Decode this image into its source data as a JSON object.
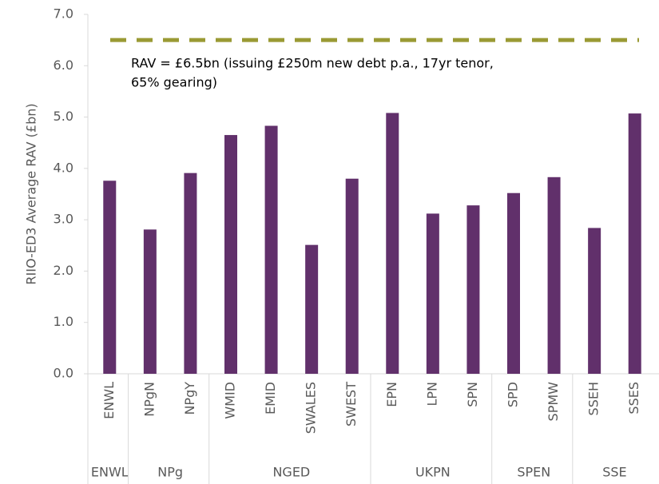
{
  "chart_data": {
    "type": "bar",
    "y_label": "RIIO-ED3 Average RAV (£bn)",
    "groups": [
      {
        "name": "ENWL",
        "categories": [
          "ENWL"
        ],
        "values": [
          3.76
        ]
      },
      {
        "name": "NPg",
        "categories": [
          "NPgN",
          "NPgY"
        ],
        "values": [
          2.81,
          3.91
        ]
      },
      {
        "name": "NGED",
        "categories": [
          "WMID",
          "EMID",
          "SWALES",
          "SWEST"
        ],
        "values": [
          4.65,
          4.83,
          2.51,
          3.8
        ]
      },
      {
        "name": "UKPN",
        "categories": [
          "EPN",
          "LPN",
          "SPN"
        ],
        "values": [
          5.08,
          3.12,
          3.28
        ]
      },
      {
        "name": "SPEN",
        "categories": [
          "SPD",
          "SPMW"
        ],
        "values": [
          3.52,
          3.83
        ]
      },
      {
        "name": "SSE",
        "categories": [
          "SSEH",
          "SSES"
        ],
        "values": [
          2.84,
          5.07
        ]
      }
    ],
    "color": "#61306b",
    "reference_line": {
      "value": 6.5,
      "color": "#9a9a34",
      "annotation": [
        "RAV = £6.5bn (issuing £250m new debt p.a., 17yr tenor,",
        "65% gearing)"
      ]
    },
    "ylim": [
      0,
      7
    ],
    "yticks": [
      {
        "value": 0,
        "label": "0.0"
      },
      {
        "value": 1,
        "label": "1.0"
      },
      {
        "value": 2,
        "label": "2.0"
      },
      {
        "value": 3,
        "label": "3.0"
      },
      {
        "value": 4,
        "label": "4.0"
      },
      {
        "value": 5,
        "label": "5.0"
      },
      {
        "value": 6,
        "label": "6.0"
      },
      {
        "value": 7,
        "label": "7.0"
      }
    ],
    "grid": false
  }
}
